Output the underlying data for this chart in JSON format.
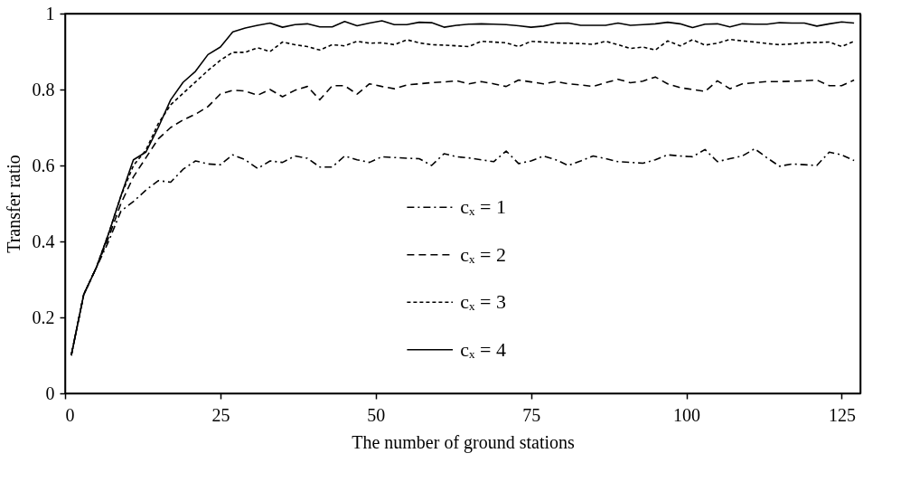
{
  "chart_data": {
    "type": "line",
    "xlabel": "The number of ground stations",
    "ylabel": "Transfer ratio",
    "x": [
      1,
      3,
      5,
      7,
      9,
      11,
      13,
      15,
      17,
      19,
      21,
      23,
      25,
      27,
      29,
      31,
      33,
      35,
      37,
      39,
      41,
      43,
      45,
      47,
      49,
      51,
      53,
      55,
      57,
      59,
      61,
      63,
      65,
      67,
      69,
      71,
      73,
      75,
      77,
      79,
      81,
      83,
      85,
      87,
      89,
      91,
      93,
      95,
      97,
      99,
      101,
      103,
      105,
      107,
      109,
      111,
      113,
      115,
      117,
      119,
      121,
      123,
      125,
      127
    ],
    "series": [
      {
        "name": "cₓ = 1",
        "color": "#000000",
        "line_style": "dashdot",
        "values": [
          0.1,
          0.26,
          0.33,
          0.4,
          0.48,
          0.505,
          0.535,
          0.56,
          0.556,
          0.59,
          0.612,
          0.604,
          0.602,
          0.628,
          0.615,
          0.592,
          0.612,
          0.608,
          0.625,
          0.619,
          0.596,
          0.596,
          0.625,
          0.615,
          0.608,
          0.623,
          0.621,
          0.619,
          0.618,
          0.6,
          0.631,
          0.623,
          0.62,
          0.615,
          0.61,
          0.638,
          0.605,
          0.612,
          0.625,
          0.615,
          0.6,
          0.612,
          0.625,
          0.618,
          0.61,
          0.608,
          0.606,
          0.615,
          0.628,
          0.625,
          0.623,
          0.642,
          0.61,
          0.618,
          0.625,
          0.644,
          0.62,
          0.598,
          0.604,
          0.602,
          0.6,
          0.635,
          0.628,
          0.613
        ]
      },
      {
        "name": "cₓ = 2",
        "color": "#000000",
        "line_style": "dashed",
        "values": [
          0.1,
          0.26,
          0.33,
          0.41,
          0.5,
          0.57,
          0.62,
          0.67,
          0.7,
          0.72,
          0.735,
          0.755,
          0.788,
          0.798,
          0.796,
          0.785,
          0.8,
          0.781,
          0.798,
          0.808,
          0.773,
          0.81,
          0.81,
          0.788,
          0.815,
          0.808,
          0.802,
          0.812,
          0.815,
          0.818,
          0.82,
          0.823,
          0.815,
          0.821,
          0.815,
          0.808,
          0.825,
          0.82,
          0.815,
          0.821,
          0.815,
          0.812,
          0.808,
          0.818,
          0.827,
          0.818,
          0.822,
          0.833,
          0.815,
          0.805,
          0.8,
          0.795,
          0.823,
          0.802,
          0.815,
          0.818,
          0.821,
          0.821,
          0.822,
          0.823,
          0.825,
          0.81,
          0.81,
          0.825
        ]
      },
      {
        "name": "cₓ = 3",
        "color": "#000000",
        "line_style": "dotted",
        "values": [
          0.1,
          0.26,
          0.33,
          0.42,
          0.52,
          0.6,
          0.64,
          0.71,
          0.76,
          0.79,
          0.82,
          0.85,
          0.877,
          0.898,
          0.898,
          0.91,
          0.9,
          0.925,
          0.918,
          0.913,
          0.904,
          0.918,
          0.915,
          0.927,
          0.922,
          0.923,
          0.918,
          0.931,
          0.923,
          0.918,
          0.917,
          0.915,
          0.913,
          0.927,
          0.925,
          0.923,
          0.913,
          0.927,
          0.925,
          0.923,
          0.922,
          0.921,
          0.919,
          0.927,
          0.918,
          0.908,
          0.912,
          0.904,
          0.928,
          0.915,
          0.931,
          0.917,
          0.922,
          0.932,
          0.928,
          0.925,
          0.921,
          0.918,
          0.92,
          0.923,
          0.924,
          0.925,
          0.913,
          0.927
        ]
      },
      {
        "name": "cₓ = 4",
        "color": "#000000",
        "line_style": "solid",
        "values": [
          0.1,
          0.26,
          0.33,
          0.42,
          0.52,
          0.615,
          0.635,
          0.7,
          0.773,
          0.819,
          0.848,
          0.892,
          0.912,
          0.952,
          0.962,
          0.969,
          0.975,
          0.964,
          0.971,
          0.973,
          0.965,
          0.965,
          0.979,
          0.968,
          0.975,
          0.981,
          0.971,
          0.971,
          0.977,
          0.976,
          0.964,
          0.969,
          0.972,
          0.973,
          0.972,
          0.971,
          0.968,
          0.964,
          0.967,
          0.974,
          0.975,
          0.969,
          0.969,
          0.969,
          0.975,
          0.969,
          0.971,
          0.973,
          0.977,
          0.973,
          0.963,
          0.972,
          0.973,
          0.965,
          0.973,
          0.972,
          0.972,
          0.976,
          0.975,
          0.975,
          0.967,
          0.973,
          0.978,
          0.975
        ]
      }
    ],
    "xlim": [
      0,
      128
    ],
    "xticks": [
      0,
      25,
      50,
      75,
      100,
      125
    ],
    "ylim": [
      0,
      1
    ],
    "yticks": [
      0,
      0.2,
      0.4,
      0.6,
      0.8,
      1
    ],
    "tick_labels": "xy",
    "grid": false,
    "legend": "bottom",
    "marker": "none"
  }
}
